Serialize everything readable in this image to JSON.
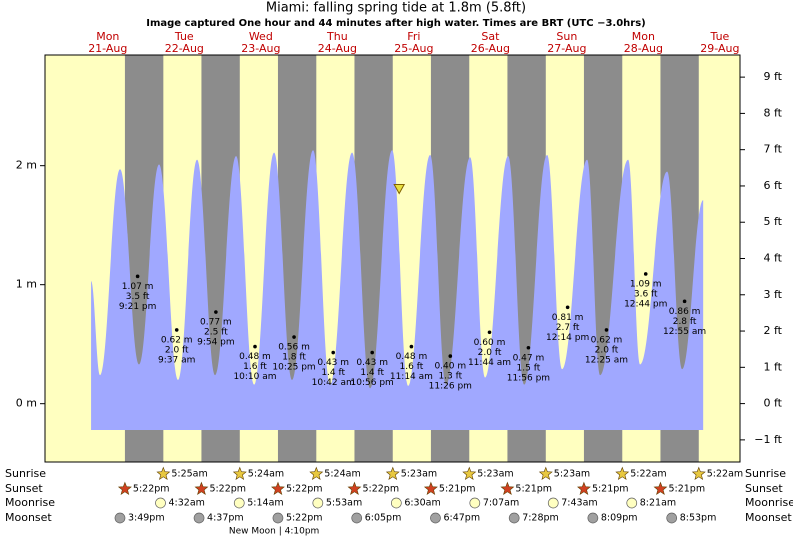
{
  "chart_data": {
    "type": "tide",
    "title": "Miami: falling  spring tide at 1.8m (5.8ft)",
    "subtitle": "Image captured One hour and 44 minutes after high water. Times are BRT (UTC −3.0hrs)",
    "xlim": [
      -7.7,
      210.3
    ],
    "ylim": [
      -0.49,
      2.93
    ],
    "yticks": [
      {
        "value": 0,
        "label": "0 m"
      },
      {
        "value": 1,
        "label": "1 m"
      },
      {
        "value": 2,
        "label": "2 m"
      }
    ],
    "y2lim": [
      -1.61,
      9.61
    ],
    "y2ticks": [
      {
        "value": -1,
        "label": "−1 ft"
      },
      {
        "value": 0,
        "label": "0 ft"
      },
      {
        "value": 1,
        "label": "1 ft"
      },
      {
        "value": 2,
        "label": "2 ft"
      },
      {
        "value": 3,
        "label": "3 ft"
      },
      {
        "value": 4,
        "label": "4 ft"
      },
      {
        "value": 5,
        "label": "5 ft"
      },
      {
        "value": 6,
        "label": "6 ft"
      },
      {
        "value": 7,
        "label": "7 ft"
      },
      {
        "value": 8,
        "label": "8 ft"
      },
      {
        "value": 9,
        "label": "9 ft"
      }
    ],
    "days": {
      "names": [
        "Mon",
        "Tue",
        "Wed",
        "Thu",
        "Fri",
        "Sat",
        "Sun",
        "Mon",
        "Tue"
      ],
      "dates": [
        "21-Aug",
        "22-Aug",
        "23-Aug",
        "24-Aug",
        "25-Aug",
        "26-Aug",
        "27-Aug",
        "28-Aug",
        "29-Aug"
      ]
    },
    "tide": {
      "color": "#a0a8ff",
      "x": [
        6.75,
        9.57,
        15.84,
        21.8,
        28.08,
        34.04,
        40.0,
        45.65,
        52.24,
        57.88,
        64.16,
        69.8,
        76.39,
        81.73,
        88.63,
        94.27,
        101.18,
        106.2,
        113.1,
        118.12,
        125.65,
        130.35,
        137.57,
        142.59,
        149.8,
        154.51,
        162.35,
        166.43,
        175.22,
        178.98,
        187.45,
        192.16,
        198.75
      ],
      "values": [
        1.03,
        0.24,
        1.97,
        0.33,
        2.01,
        0.2,
        2.05,
        0.24,
        2.08,
        0.16,
        2.11,
        0.2,
        2.13,
        0.16,
        2.11,
        0.13,
        2.13,
        0.15,
        2.09,
        0.16,
        2.07,
        0.22,
        2.08,
        0.16,
        2.09,
        0.29,
        2.05,
        0.24,
        2.05,
        0.33,
        1.95,
        0.29,
        1.71
      ]
    },
    "extremes": {
      "x": [
        21.35,
        33.62,
        45.9,
        58.17,
        70.42,
        82.7,
        94.93,
        107.23,
        119.43,
        131.73,
        143.93,
        156.23,
        168.42,
        180.73,
        192.92
      ],
      "values": [
        1.07,
        0.62,
        0.77,
        0.48,
        0.56,
        0.43,
        0.43,
        0.48,
        0.4,
        0.6,
        0.47,
        0.81,
        0.62,
        1.09,
        0.86
      ],
      "value_labels": [
        "1.07 m",
        "0.62 m",
        "0.77 m",
        "0.48 m",
        "0.56 m",
        "0.43 m",
        "0.43 m",
        "0.48 m",
        "0.40 m",
        "0.60 m",
        "0.47 m",
        "0.81 m",
        "0.62 m",
        "1.09 m",
        "0.86 m"
      ],
      "ft_labels": [
        "3.5 ft",
        "2.0 ft",
        "2.5 ft",
        "1.6 ft",
        "1.8 ft",
        "1.4 ft",
        "1.4 ft",
        "1.6 ft",
        "1.3 ft",
        "2.0 ft",
        "1.5 ft",
        "2.7 ft",
        "2.0 ft",
        "3.6 ft",
        "2.8 ft"
      ],
      "time_labels": [
        "9:21 pm",
        "9:37 am",
        "9:54 pm",
        "10:10 am",
        "10:25 pm",
        "10:42 am",
        "10:56 pm",
        "11:14 am",
        "11:26 pm",
        "11:44 am",
        "11:56 pm",
        "12:14 pm",
        "12:25 am",
        "12:44 pm",
        "12:55 am"
      ]
    },
    "now": {
      "x": 103.4,
      "value": 1.8
    }
  },
  "almanac": {
    "rows": [
      {
        "label": "Sunrise",
        "times": [
          "5:25am",
          "5:24am",
          "5:24am",
          "5:23am",
          "5:23am",
          "5:23am",
          "5:22am",
          "5:22am"
        ],
        "x": [
          29.42,
          53.4,
          77.4,
          101.38,
          125.38,
          149.38,
          173.37,
          197.37
        ]
      },
      {
        "label": "Sunset",
        "times": [
          "5:22pm",
          "5:22pm",
          "5:22pm",
          "5:22pm",
          "5:21pm",
          "5:21pm",
          "5:21pm",
          "5:21pm"
        ],
        "x": [
          17.37,
          41.37,
          65.37,
          89.37,
          113.35,
          137.35,
          161.35,
          185.35
        ]
      },
      {
        "label": "Moonrise",
        "times": [
          "4:32am",
          "5:14am",
          "5:53am",
          "6:30am",
          "7:07am",
          "7:43am",
          "8:21am"
        ],
        "x": [
          28.53,
          53.23,
          77.88,
          102.5,
          127.12,
          151.72,
          176.35
        ]
      },
      {
        "label": "Moonset",
        "times": [
          "3:49pm",
          "4:37pm",
          "5:22pm",
          "6:05pm",
          "6:47pm",
          "7:28pm",
          "8:09pm",
          "8:53pm"
        ],
        "x": [
          15.82,
          40.62,
          65.37,
          90.08,
          114.78,
          139.47,
          164.15,
          188.88
        ]
      }
    ],
    "new_moon": {
      "text": "New Moon | 4:10pm",
      "x": 64.17
    }
  }
}
